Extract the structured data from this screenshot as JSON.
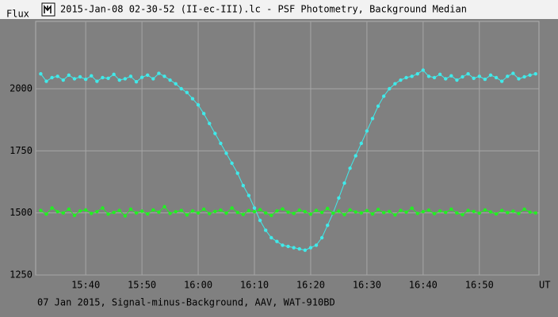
{
  "chart_data": {
    "type": "line",
    "title": "2015-Jan-08 02-30-52 (II-ec-III).lc - PSF Photometry, Background Median",
    "y_label": "Flux",
    "x_label": "UT",
    "footer": "07 Jan 2015, Signal-minus-Background, AAV, WAT-910BD",
    "x": [
      932,
      933,
      934,
      935,
      936,
      937,
      938,
      939,
      940,
      941,
      942,
      943,
      944,
      945,
      946,
      947,
      948,
      949,
      950,
      951,
      952,
      953,
      954,
      955,
      956,
      957,
      958,
      959,
      960,
      961,
      962,
      963,
      964,
      965,
      966,
      967,
      968,
      969,
      970,
      971,
      972,
      973,
      974,
      975,
      976,
      977,
      978,
      979,
      980,
      981,
      982,
      983,
      984,
      985,
      986,
      987,
      988,
      989,
      990,
      991,
      992,
      993,
      994,
      995,
      996,
      997,
      998,
      999,
      1000,
      1001,
      1002,
      1003,
      1004,
      1005,
      1006,
      1007,
      1008,
      1009,
      1010,
      1011,
      1012,
      1013,
      1014,
      1015,
      1016,
      1017,
      1018,
      1019,
      1020
    ],
    "series": [
      {
        "color": "#40eaea",
        "values": [
          2060,
          2030,
          2045,
          2050,
          2035,
          2055,
          2040,
          2048,
          2038,
          2052,
          2030,
          2045,
          2042,
          2058,
          2035,
          2040,
          2050,
          2028,
          2046,
          2055,
          2040,
          2062,
          2050,
          2035,
          2020,
          2000,
          1985,
          1960,
          1935,
          1900,
          1860,
          1820,
          1780,
          1740,
          1700,
          1660,
          1610,
          1570,
          1520,
          1470,
          1430,
          1400,
          1385,
          1370,
          1365,
          1360,
          1355,
          1350,
          1360,
          1370,
          1400,
          1450,
          1500,
          1560,
          1620,
          1680,
          1730,
          1780,
          1830,
          1880,
          1930,
          1970,
          2000,
          2020,
          2035,
          2045,
          2050,
          2060,
          2075,
          2050,
          2045,
          2058,
          2040,
          2052,
          2035,
          2048,
          2060,
          2042,
          2050,
          2038,
          2055,
          2045,
          2030,
          2050,
          2062,
          2040,
          2048,
          2055,
          2060
        ]
      },
      {
        "color": "#22f022",
        "values": [
          1510,
          1495,
          1520,
          1505,
          1500,
          1515,
          1490,
          1508,
          1512,
          1498,
          1505,
          1520,
          1495,
          1502,
          1510,
          1488,
          1515,
          1500,
          1507,
          1496,
          1512,
          1503,
          1525,
          1498,
          1505,
          1510,
          1492,
          1508,
          1500,
          1515,
          1497,
          1506,
          1511,
          1499,
          1520,
          1502,
          1494,
          1509,
          1505,
          1513,
          1500,
          1490,
          1508,
          1516,
          1503,
          1498,
          1511,
          1505,
          1495,
          1510,
          1502,
          1518,
          1499,
          1507,
          1493,
          1512,
          1504,
          1500,
          1509,
          1496,
          1514,
          1501,
          1506,
          1492,
          1510,
          1503,
          1519,
          1498,
          1505,
          1511,
          1497,
          1508,
          1502,
          1515,
          1500,
          1493,
          1510,
          1506,
          1499,
          1512,
          1504,
          1496,
          1510,
          1501,
          1507,
          1498,
          1515,
          1503,
          1500
        ]
      }
    ],
    "xlim": [
      931.1,
      1020.6
    ],
    "xticks": [
      {
        "value": 940,
        "label": "15:40"
      },
      {
        "value": 950,
        "label": "15:50"
      },
      {
        "value": 960,
        "label": "16:00"
      },
      {
        "value": 970,
        "label": "16:10"
      },
      {
        "value": 980,
        "label": "16:20"
      },
      {
        "value": 990,
        "label": "16:30"
      },
      {
        "value": 1000,
        "label": "16:40"
      },
      {
        "value": 1010,
        "label": "16:50"
      }
    ],
    "ylim": [
      1250,
      2300
    ],
    "yticks": [
      1250,
      1500,
      1750,
      2000
    ],
    "grid": true
  }
}
